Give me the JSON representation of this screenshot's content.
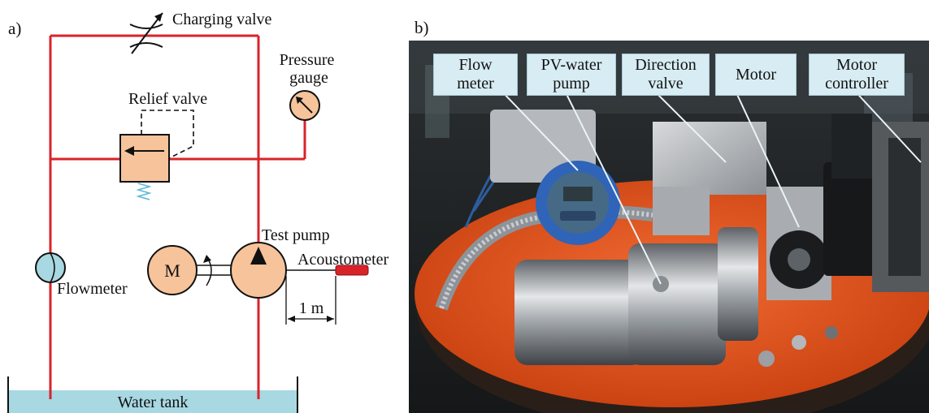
{
  "panel_a": {
    "label": "a)",
    "charging_valve": "Charging valve",
    "pressure_gauge": "Pressure\ngauge",
    "relief_valve": "Relief valve",
    "test_pump": "Test pump",
    "acoustometer": "Acoustometer",
    "motor_symbol": "M",
    "flowmeter": "Flowmeter",
    "distance": "1 m",
    "water_tank": "Water tank"
  },
  "panel_b": {
    "label": "b)",
    "callouts": [
      {
        "text": "Flow\nmeter"
      },
      {
        "text": "PV-water\npump"
      },
      {
        "text": "Direction\nvalve"
      },
      {
        "text": "Motor"
      },
      {
        "text": "Motor\ncontroller"
      }
    ]
  },
  "colors": {
    "pipe": "#d9232a",
    "component_fill": "#f6c39a",
    "water": "#a8d8e2",
    "callout_bg": "#d7ecf3",
    "platform": "#e8501c"
  }
}
